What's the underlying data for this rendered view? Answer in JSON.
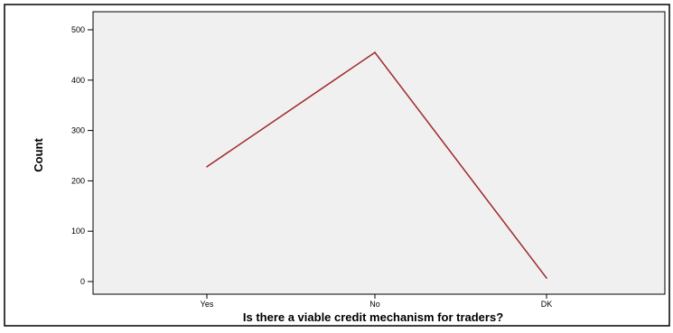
{
  "chart_data": {
    "type": "line",
    "categories": [
      "Yes",
      "No",
      "DK"
    ],
    "series": [
      {
        "values": [
          228,
          455,
          7
        ]
      }
    ],
    "xlabel": "Is there a viable credit mechanism for traders?",
    "ylabel": "Count",
    "ylim": [
      0,
      500
    ],
    "yticks": [
      0,
      100,
      200,
      300,
      400,
      500
    ],
    "grid": false,
    "line_color": "#a0282a",
    "plot_background": "#f0f0f0"
  }
}
